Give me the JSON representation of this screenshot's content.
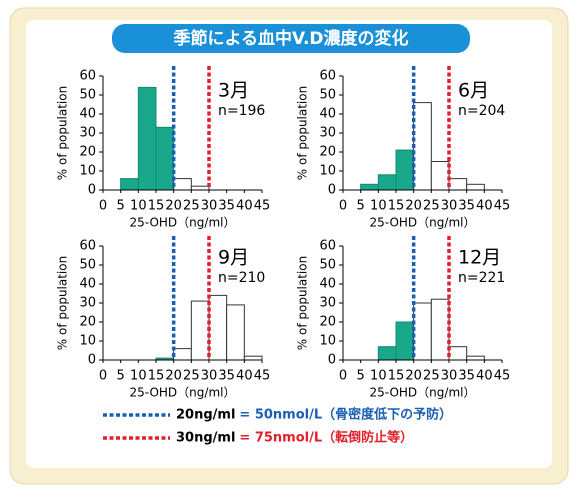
{
  "title": "季節による血中V.D濃度の変化",
  "legend": [
    {
      "label": "20ng/ml",
      "note": "= 50nmol/L（骨密度低下の予防）",
      "color": "#1a5fb4"
    },
    {
      "label": "30ng/ml",
      "note": "= 75nmol/L（転倒防止等）",
      "color": "#e2202c"
    }
  ],
  "chart_data": [
    {
      "type": "histogram",
      "title": "3月",
      "subtitle": "n=196",
      "x_label": "25-OHD（ng/ml）",
      "y_label": "% of population",
      "bins": [
        0,
        5,
        10,
        15,
        20,
        25,
        30,
        35,
        40,
        45
      ],
      "counts": [
        0,
        6,
        54,
        33,
        6,
        2,
        0,
        0,
        0
      ],
      "bar_colors": [
        "#19a98a",
        "#19a98a",
        "#19a98a",
        "#19a98a",
        "#ffffff",
        "#ffffff",
        "#ffffff",
        "#ffffff",
        "#ffffff"
      ],
      "ref_lines": [
        {
          "x": 20,
          "color": "#1a5fb4"
        },
        {
          "x": 30,
          "color": "#e2202c"
        }
      ],
      "xlim": [
        0,
        45
      ],
      "ylim": [
        0,
        60
      ],
      "xticks": [
        0,
        5,
        10,
        15,
        20,
        25,
        30,
        35,
        40,
        45
      ],
      "yticks": [
        0,
        10,
        20,
        30,
        40,
        50,
        60
      ]
    },
    {
      "type": "histogram",
      "title": "6月",
      "subtitle": "n=204",
      "x_label": "25-OHD（ng/ml）",
      "y_label": "% of population",
      "bins": [
        0,
        5,
        10,
        15,
        20,
        25,
        30,
        35,
        40,
        45
      ],
      "counts": [
        0,
        3,
        8,
        21,
        46,
        15,
        6,
        3,
        0
      ],
      "bar_colors": [
        "#19a98a",
        "#19a98a",
        "#19a98a",
        "#19a98a",
        "#ffffff",
        "#ffffff",
        "#ffffff",
        "#ffffff",
        "#ffffff"
      ],
      "ref_lines": [
        {
          "x": 20,
          "color": "#1a5fb4"
        },
        {
          "x": 30,
          "color": "#e2202c"
        }
      ],
      "xlim": [
        0,
        45
      ],
      "ylim": [
        0,
        60
      ],
      "xticks": [
        0,
        5,
        10,
        15,
        20,
        25,
        30,
        35,
        40,
        45
      ],
      "yticks": [
        0,
        10,
        20,
        30,
        40,
        50,
        60
      ]
    },
    {
      "type": "histogram",
      "title": "9月",
      "subtitle": "n=210",
      "x_label": "25-OHD（ng/ml）",
      "y_label": "% of population",
      "bins": [
        0,
        5,
        10,
        15,
        20,
        25,
        30,
        35,
        40,
        45
      ],
      "counts": [
        0,
        0,
        0,
        1,
        6,
        31,
        34,
        29,
        2
      ],
      "bar_colors": [
        "#19a98a",
        "#19a98a",
        "#19a98a",
        "#19a98a",
        "#ffffff",
        "#ffffff",
        "#ffffff",
        "#ffffff",
        "#ffffff"
      ],
      "ref_lines": [
        {
          "x": 20,
          "color": "#1a5fb4"
        },
        {
          "x": 30,
          "color": "#e2202c"
        }
      ],
      "xlim": [
        0,
        45
      ],
      "ylim": [
        0,
        60
      ],
      "xticks": [
        0,
        5,
        10,
        15,
        20,
        25,
        30,
        35,
        40,
        45
      ],
      "yticks": [
        0,
        10,
        20,
        30,
        40,
        50,
        60
      ]
    },
    {
      "type": "histogram",
      "title": "12月",
      "subtitle": "n=221",
      "x_label": "25-OHD（ng/ml）",
      "y_label": "% of population",
      "bins": [
        0,
        5,
        10,
        15,
        20,
        25,
        30,
        35,
        40,
        45
      ],
      "counts": [
        0,
        0,
        7,
        20,
        30,
        32,
        7,
        2,
        0
      ],
      "bar_colors": [
        "#19a98a",
        "#19a98a",
        "#19a98a",
        "#19a98a",
        "#ffffff",
        "#ffffff",
        "#ffffff",
        "#ffffff",
        "#ffffff"
      ],
      "ref_lines": [
        {
          "x": 20,
          "color": "#1a5fb4"
        },
        {
          "x": 30,
          "color": "#e2202c"
        }
      ],
      "xlim": [
        0,
        45
      ],
      "ylim": [
        0,
        60
      ],
      "xticks": [
        0,
        5,
        10,
        15,
        20,
        25,
        30,
        35,
        40,
        45
      ],
      "yticks": [
        0,
        10,
        20,
        30,
        40,
        50,
        60
      ]
    }
  ]
}
